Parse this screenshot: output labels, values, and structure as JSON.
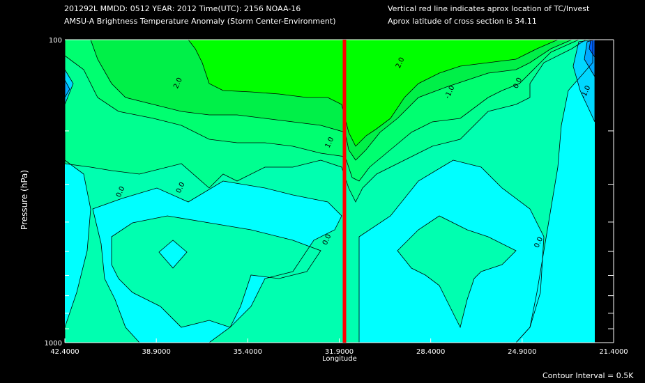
{
  "header": {
    "line1_left": "201292L  MMDD: 0512 YEAR: 2012 Time(UTC): 2156 NOAA-16",
    "line2_left": "AMSU-A Brightness Temperature Anomaly (Storm Center-Environment)",
    "line1_right": "Vertical red line indicates aprox location of TC/Invest",
    "line2_right": "Aprox latitude of cross section is 34.11"
  },
  "footer": {
    "contour_interval": "Contour Interval = 0.5K"
  },
  "colors": {
    "background": "#000000",
    "storm_line": "#ff0000",
    "fill_m2": "#0064ff",
    "fill_m15": "#00a8ff",
    "fill_m1": "#00d8ff",
    "fill_m05": "#00ffff",
    "fill_0": "#00ffb0",
    "fill_05": "#00ff90",
    "fill_1": "#00ff70",
    "fill_15": "#00f048",
    "fill_2": "#00ff00"
  },
  "chart_data": {
    "type": "contour",
    "xlabel": "Longitude",
    "ylabel": "Pressure (hPa)",
    "x_ticks": [
      "42.4000",
      "38.9000",
      "35.4000",
      "31.9000",
      "28.4000",
      "24.9000",
      "21.4000"
    ],
    "xlim": [
      42.4,
      21.4
    ],
    "y_ticks": [
      "100",
      "1000"
    ],
    "ylim": [
      1000,
      100
    ],
    "y_scale": "log",
    "storm_longitude": 31.7,
    "contour_labels": [
      {
        "text": "2.0",
        "x": 38.0,
        "y": 140
      },
      {
        "text": "2.0",
        "x": 29.5,
        "y": 120
      },
      {
        "text": "-1.0",
        "x": 27.6,
        "y": 150
      },
      {
        "text": "0.0",
        "x": 25.0,
        "y": 140
      },
      {
        "text": "-1.0",
        "x": 22.4,
        "y": 150
      },
      {
        "text": "1.0",
        "x": 32.2,
        "y": 220
      },
      {
        "text": "0.0",
        "x": 40.2,
        "y": 320
      },
      {
        "text": "0.0",
        "x": 37.9,
        "y": 310
      },
      {
        "text": "0.0",
        "x": 32.3,
        "y": 460
      },
      {
        "text": "0.0",
        "x": 24.2,
        "y": 470
      }
    ]
  }
}
